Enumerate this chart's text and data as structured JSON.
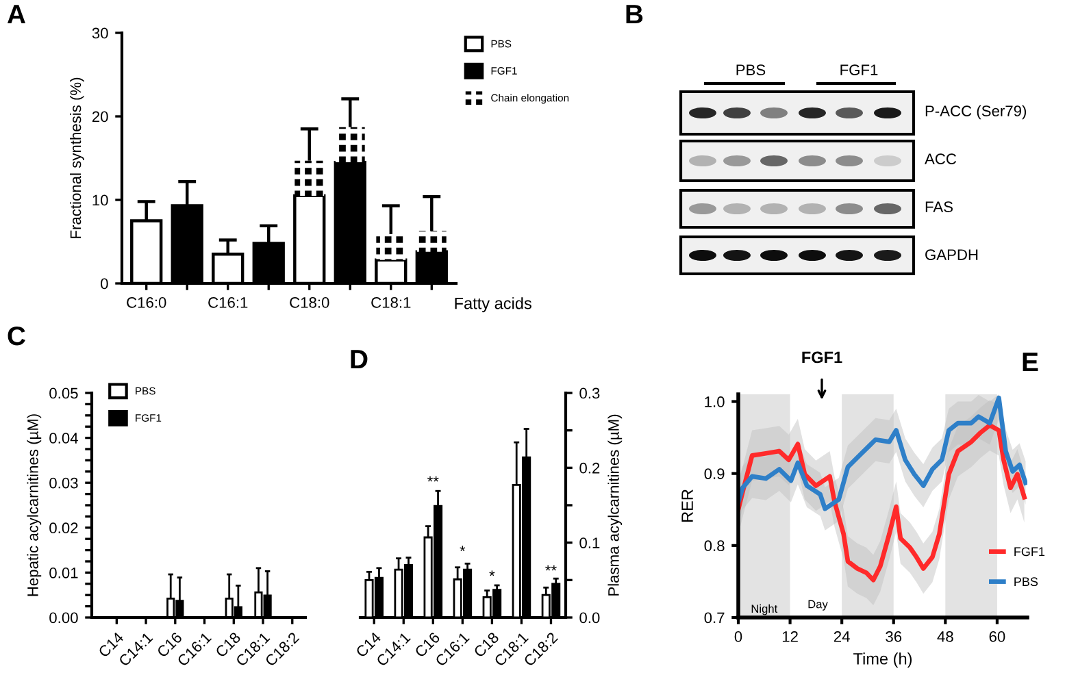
{
  "chart_data": [
    {
      "type": "bar",
      "title": "A",
      "ylabel": "Fractional synthesis (%)",
      "xlabel": "Fatty acids",
      "categories": [
        "C16:0",
        null,
        "C16:1",
        null,
        "C18:0",
        null,
        "C18:1",
        null
      ],
      "stacked": true,
      "legend": "right",
      "ylim": [
        0,
        30
      ],
      "yticks": [
        0,
        10,
        20,
        30
      ],
      "series": [
        {
          "name": "PBS",
          "color": "#ffffff",
          "values": [
            7.5,
            null,
            3.5,
            null,
            10.5,
            null,
            2.8,
            null
          ],
          "errors": [
            [
              7.5,
              9.8
            ],
            null,
            [
              3.5,
              5.2
            ],
            null,
            null,
            null,
            null,
            null
          ]
        },
        {
          "name": "FGF1",
          "color": "#000000",
          "values": [
            null,
            9.3,
            null,
            4.8,
            null,
            14.5,
            null,
            3.8
          ],
          "errors": [
            null,
            [
              9.3,
              12.2
            ],
            null,
            [
              4.8,
              6.9
            ],
            null,
            null,
            null,
            null
          ]
        },
        {
          "name": "Chain elongation",
          "color": "#000000",
          "values": [
            null,
            null,
            null,
            null,
            4.2,
            4.2,
            3.1,
            2.5
          ],
          "errors": [
            null,
            null,
            null,
            null,
            [
              14.7,
              18.5
            ],
            [
              18.7,
              22.1
            ],
            [
              5.9,
              9.3
            ],
            [
              6.3,
              10.4
            ]
          ]
        }
      ]
    },
    {
      "type": "other",
      "title": "B",
      "annotations": [
        "PBS",
        "FGF1",
        "P-ACC (Ser79)",
        "ACC",
        "FAS",
        "GAPDH"
      ]
    },
    {
      "type": "bar",
      "title": "C",
      "ylabel": "Hepatic acylcarnitines (µM)",
      "categories": [
        "C14",
        "C14:1",
        "C16",
        "C16:1",
        "C18",
        "C18:1",
        "C18:2"
      ],
      "legend": "top left",
      "ylim": [
        0,
        0.05
      ],
      "yticks": [
        {
          "value": 0,
          "label": "0.00"
        },
        {
          "value": 0.0025,
          "label": null
        },
        {
          "value": 0.005,
          "label": null
        },
        {
          "value": 0.0075,
          "label": null
        },
        {
          "value": 0.01,
          "label": "0.01"
        },
        {
          "value": 0.0125,
          "label": null
        },
        {
          "value": 0.015,
          "label": null
        },
        {
          "value": 0.0175,
          "label": null
        },
        {
          "value": 0.02,
          "label": "0.02"
        },
        {
          "value": 0.0225,
          "label": null
        },
        {
          "value": 0.025,
          "label": null
        },
        {
          "value": 0.0275,
          "label": null
        },
        {
          "value": 0.03,
          "label": "0.03"
        },
        {
          "value": 0.0325,
          "label": null
        },
        {
          "value": 0.035,
          "label": null
        },
        {
          "value": 0.0375,
          "label": null
        },
        {
          "value": 0.04,
          "label": "0.04"
        },
        {
          "value": 0.0425,
          "label": null
        },
        {
          "value": 0.045,
          "label": null
        },
        {
          "value": 0.0475,
          "label": null
        },
        {
          "value": 0.05,
          "label": "0.05"
        }
      ],
      "series": [
        {
          "name": "PBS",
          "color": "#ffffff",
          "values": [
            null,
            null,
            0.0042,
            null,
            0.0042,
            0.0056,
            null
          ],
          "errors": [
            null,
            null,
            [
              0.0042,
              0.0096
            ],
            null,
            [
              0.0042,
              0.0096
            ],
            [
              0.0056,
              0.011
            ],
            null
          ]
        },
        {
          "name": "FGF1",
          "color": "#000000",
          "values": [
            null,
            null,
            0.0037,
            null,
            0.0023,
            0.0049,
            null
          ],
          "errors": [
            null,
            null,
            [
              0.0037,
              0.0089
            ],
            null,
            [
              0.0023,
              0.0071
            ],
            [
              0.0049,
              0.0103
            ],
            null
          ]
        }
      ]
    },
    {
      "type": "bar",
      "title": "D",
      "y2label": "Plasma acylcarnitines (µM)",
      "categories": [
        "C14",
        "C14:1",
        "C16",
        "C16:1",
        "C18",
        "C18:1",
        "C18:2"
      ],
      "y2lim": [
        0,
        0.3
      ],
      "y2ticks": [
        {
          "value": 0,
          "label": "0.0"
        },
        {
          "value": 0.05,
          "label": null
        },
        {
          "value": 0.1,
          "label": "0.1"
        },
        {
          "value": 0.15,
          "label": null
        },
        {
          "value": 0.2,
          "label": "0.2"
        },
        {
          "value": 0.25,
          "label": null
        },
        {
          "value": 0.3,
          "label": "0.3"
        }
      ],
      "annotations": [
        "**",
        "*",
        "*",
        "**"
      ],
      "series": [
        {
          "color": "#ffffff",
          "axis": "y2",
          "values": [
            0.05,
            0.064,
            0.107,
            0.051,
            0.027,
            0.177,
            0.03
          ],
          "errors": [
            [
              0.05,
              0.061
            ],
            [
              0.064,
              0.079
            ],
            [
              0.107,
              0.122
            ],
            [
              0.051,
              0.067
            ],
            [
              0.027,
              0.036
            ],
            [
              0.177,
              0.234
            ],
            [
              0.03,
              0.04
            ]
          ]
        },
        {
          "color": "#000000",
          "axis": "y2",
          "values": [
            0.053,
            0.07,
            0.149,
            0.064,
            0.037,
            0.214,
            0.045
          ],
          "errors": [
            [
              0.053,
              0.066
            ],
            [
              0.07,
              0.08
            ],
            [
              0.149,
              0.169
            ],
            [
              0.064,
              0.072
            ],
            [
              0.037,
              0.043
            ],
            [
              0.214,
              0.252
            ],
            [
              0.045,
              0.052
            ]
          ]
        }
      ]
    },
    {
      "type": "line",
      "title": "E",
      "xlabel": "Time (h)",
      "ylabel": "RER",
      "xlim": [
        0,
        67
      ],
      "xticks": [
        0,
        12,
        24,
        36,
        48,
        60
      ],
      "ylim": [
        0.7,
        1.01
      ],
      "yticks": [
        0.7,
        0.8,
        0.9,
        {
          "value": 1.0,
          "label": "1.0"
        }
      ],
      "legend": "bottom right",
      "line_style": "solid",
      "bands": [
        {
          "axis": "x",
          "from": 0,
          "to": 12,
          "label": "Night",
          "color": "#e3e3e3"
        },
        {
          "axis": "x",
          "from": 24,
          "to": 36,
          "color": "#e3e3e3"
        },
        {
          "axis": "x",
          "from": 48,
          "to": 60,
          "color": "#e3e3e3"
        }
      ],
      "annotations": [
        "Day",
        "FGF1"
      ],
      "series": [
        {
          "name": "FGF1",
          "color": "#ff2a2a",
          "x": [
            0,
            1,
            3.2,
            6.4,
            9.5,
            11.7,
            13.8,
            15.4,
            18,
            21.2,
            22.3,
            24.4,
            25.4,
            27.6,
            29.7,
            31.3,
            32.9,
            35,
            36.6,
            37.6,
            39.8,
            41.3,
            42.9,
            45,
            46.6,
            48.8,
            50.9,
            54,
            56.2,
            58.3,
            60.4,
            61.5,
            63.1,
            64.7,
            66.3
          ],
          "values": [
            0.85,
            0.874,
            0.925,
            0.928,
            0.931,
            0.919,
            0.941,
            0.899,
            0.883,
            0.896,
            0.861,
            0.816,
            0.778,
            0.768,
            0.762,
            0.752,
            0.771,
            0.816,
            0.854,
            0.81,
            0.797,
            0.784,
            0.768,
            0.784,
            0.816,
            0.899,
            0.931,
            0.944,
            0.957,
            0.967,
            0.96,
            0.919,
            0.88,
            0.899,
            0.867
          ],
          "lower": [
            0.815,
            0.839,
            0.89,
            0.893,
            0.896,
            0.884,
            0.906,
            0.864,
            0.848,
            0.861,
            0.826,
            0.781,
            0.743,
            0.733,
            0.727,
            0.717,
            0.736,
            0.781,
            0.819,
            0.775,
            0.762,
            0.749,
            0.733,
            0.749,
            0.781,
            0.864,
            0.896,
            0.909,
            0.922,
            0.932,
            0.925,
            0.884,
            0.845,
            0.864,
            0.832
          ],
          "upper": [
            0.885,
            0.909,
            0.96,
            0.963,
            0.966,
            0.954,
            0.976,
            0.934,
            0.918,
            0.931,
            0.896,
            0.851,
            0.813,
            0.803,
            0.797,
            0.787,
            0.806,
            0.851,
            0.889,
            0.845,
            0.832,
            0.819,
            0.803,
            0.819,
            0.851,
            0.934,
            0.966,
            0.979,
            0.992,
            1.002,
            0.995,
            0.954,
            0.915,
            0.934,
            0.902
          ]
        },
        {
          "name": "PBS",
          "color": "#2e7fc8",
          "x": [
            0,
            1,
            3.2,
            6.4,
            9.5,
            12.2,
            13.8,
            15.9,
            19,
            20.1,
            23.3,
            25.4,
            28.6,
            31.8,
            35,
            36.6,
            38.7,
            40.8,
            42.9,
            45,
            47.2,
            48.8,
            50.9,
            54,
            55.7,
            58.3,
            60.4,
            62,
            63.6,
            65.2,
            66.6
          ],
          "values": [
            0.86,
            0.88,
            0.896,
            0.893,
            0.906,
            0.89,
            0.915,
            0.883,
            0.871,
            0.851,
            0.864,
            0.909,
            0.928,
            0.947,
            0.944,
            0.96,
            0.919,
            0.899,
            0.883,
            0.906,
            0.919,
            0.96,
            0.97,
            0.97,
            0.979,
            0.97,
            1.005,
            0.931,
            0.903,
            0.912,
            0.887
          ],
          "lower": [
            0.83,
            0.85,
            0.866,
            0.863,
            0.876,
            0.86,
            0.885,
            0.853,
            0.841,
            0.821,
            0.834,
            0.879,
            0.898,
            0.917,
            0.914,
            0.93,
            0.889,
            0.869,
            0.853,
            0.876,
            0.889,
            0.93,
            0.94,
            0.94,
            0.949,
            0.94,
            0.975,
            0.901,
            0.873,
            0.882,
            0.857
          ],
          "upper": [
            0.89,
            0.91,
            0.926,
            0.923,
            0.936,
            0.92,
            0.945,
            0.913,
            0.901,
            0.881,
            0.894,
            0.939,
            0.958,
            0.977,
            0.974,
            0.99,
            0.949,
            0.929,
            0.913,
            0.936,
            0.949,
            0.99,
            1.0,
            1.0,
            1.009,
            1.0,
            1.01,
            0.961,
            0.933,
            0.942,
            0.917
          ]
        }
      ]
    }
  ]
}
